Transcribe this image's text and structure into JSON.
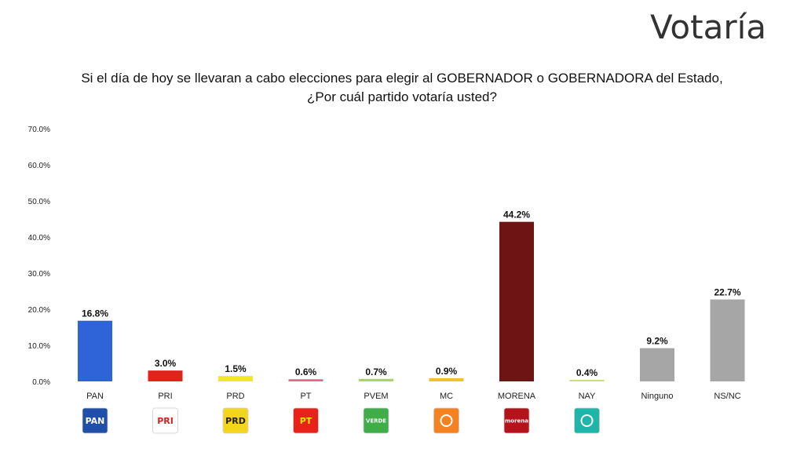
{
  "brand": "Votaría",
  "question_line1": "Si el día de hoy se llevaran a cabo elecciones para elegir al GOBERNADOR o GOBERNADORA del Estado,",
  "question_line2": "¿Por cuál partido votaría usted?",
  "chart_data": {
    "type": "bar",
    "title": "",
    "xlabel": "",
    "ylabel": "",
    "ylim": [
      0,
      70
    ],
    "yticks": [
      "0.0%",
      "10.0%",
      "20.0%",
      "30.0%",
      "40.0%",
      "50.0%",
      "60.0%",
      "70.0%"
    ],
    "grid": false,
    "categories": [
      "PAN",
      "PRI",
      "PRD",
      "PT",
      "PVEM",
      "MC",
      "MORENA",
      "NAY",
      "Ninguno",
      "NS/NC"
    ],
    "values": [
      16.8,
      3.0,
      1.5,
      0.6,
      0.7,
      0.9,
      44.2,
      0.4,
      9.2,
      22.7
    ],
    "value_labels": [
      "16.8%",
      "3.0%",
      "1.5%",
      "0.6%",
      "0.7%",
      "0.9%",
      "44.2%",
      "0.4%",
      "9.2%",
      "22.7%"
    ],
    "colors": [
      "#2f63d8",
      "#e0241b",
      "#f2e82a",
      "#e36b8a",
      "#a9d46c",
      "#f0c230",
      "#6e1414",
      "#c8e07a",
      "#a6a6a6",
      "#a6a6a6"
    ],
    "logos": [
      {
        "name": "pan-logo-icon",
        "text": "PAN",
        "bg": "#1f4fa8",
        "fg": "#ffffff"
      },
      {
        "name": "pri-logo-icon",
        "text": "PRI",
        "bg": "#ffffff",
        "fg": "#d81e1e"
      },
      {
        "name": "prd-logo-icon",
        "text": "PRD",
        "bg": "#f2d51c",
        "fg": "#222222"
      },
      {
        "name": "pt-logo-icon",
        "text": "PT",
        "bg": "#e8211b",
        "fg": "#ffe600"
      },
      {
        "name": "pvem-logo-icon",
        "text": "VERDE",
        "bg": "#3fae49",
        "fg": "#ffffff"
      },
      {
        "name": "mc-logo-icon",
        "text": "",
        "bg": "#f58220",
        "fg": "#ffffff"
      },
      {
        "name": "morena-logo-icon",
        "text": "morena",
        "bg": "#b5121b",
        "fg": "#ffffff"
      },
      {
        "name": "nay-logo-icon",
        "text": "",
        "bg": "#1fb5a8",
        "fg": "#ffffff"
      }
    ]
  }
}
